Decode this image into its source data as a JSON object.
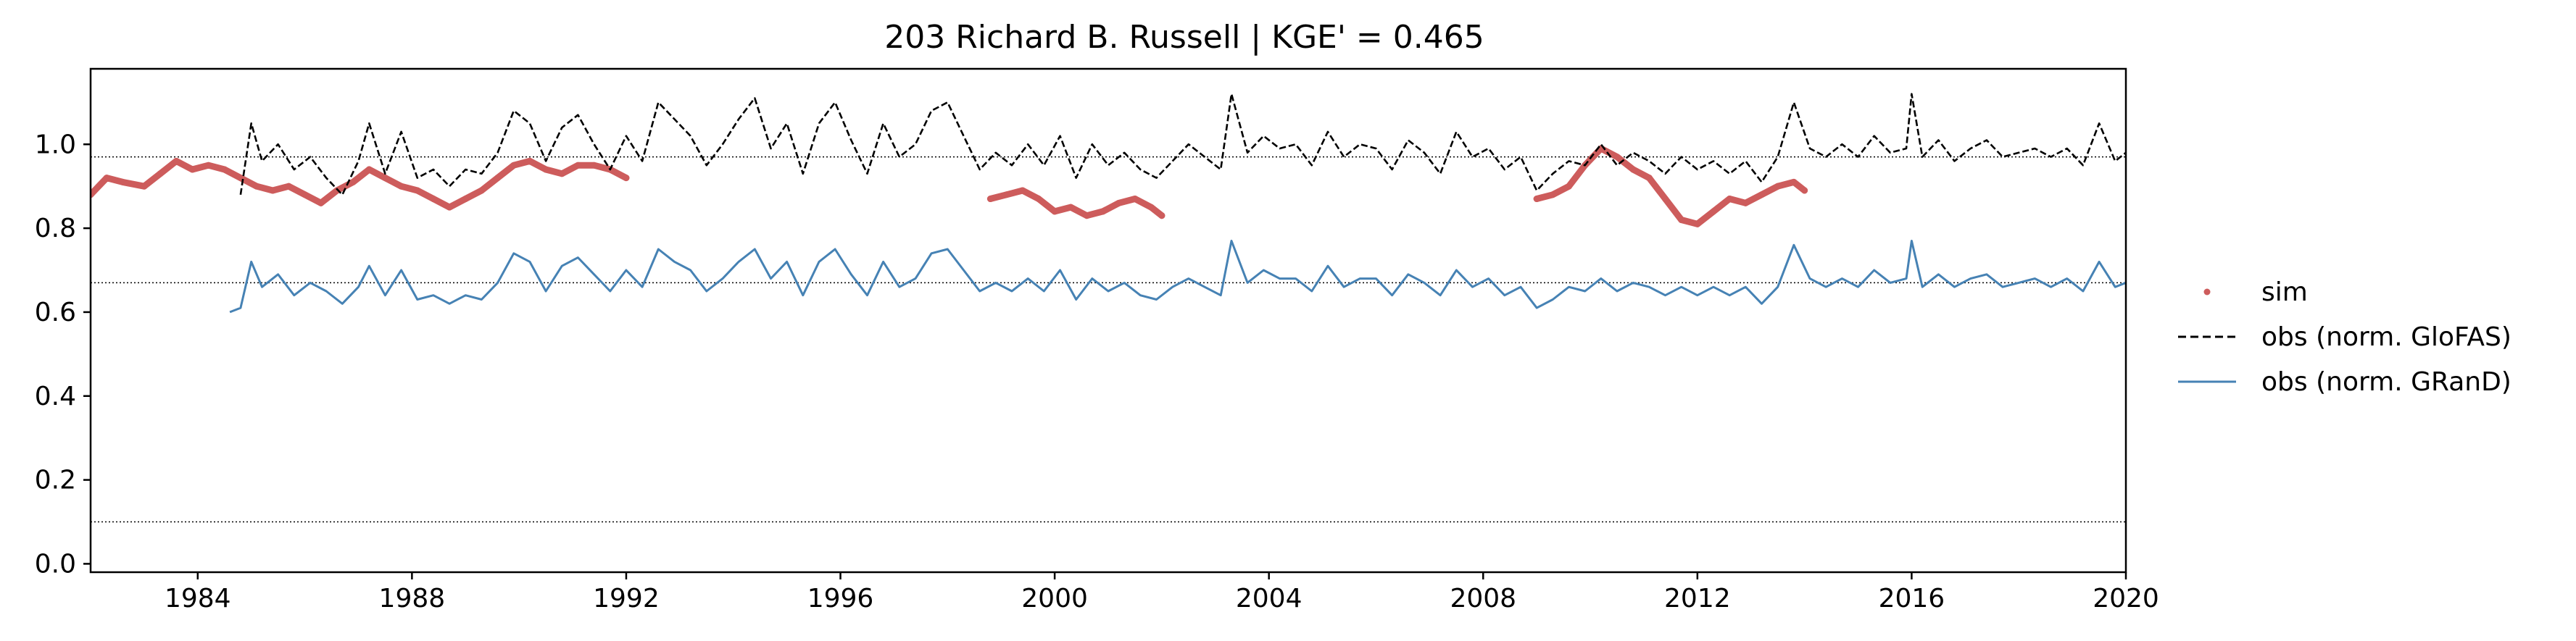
{
  "chart_data": {
    "type": "line",
    "title": "203  Richard B. Russell | KGE' = 0.465",
    "xlabel": "",
    "ylabel": "",
    "xlim": [
      1982.0,
      2020.0
    ],
    "ylim": [
      -0.02,
      1.18
    ],
    "x_ticks": [
      1984,
      1988,
      1992,
      1996,
      2000,
      2004,
      2008,
      2012,
      2016,
      2020
    ],
    "x_tick_labels": [
      "1984",
      "1988",
      "1992",
      "1996",
      "2000",
      "2004",
      "2008",
      "2012",
      "2016",
      "2020"
    ],
    "y_ticks": [
      0.0,
      0.2,
      0.4,
      0.6,
      0.8,
      1.0
    ],
    "y_tick_labels": [
      "0.0",
      "0.2",
      "0.4",
      "0.6",
      "0.8",
      "1.0"
    ],
    "hlines": [
      0.97,
      0.67,
      0.1
    ],
    "grid": false,
    "legend_position": "right",
    "legend": [
      "sim",
      "obs (norm. GloFAS)",
      "obs (norm. GRanD)"
    ],
    "colors": {
      "sim": "#cd5c5c",
      "glofas": "#000000",
      "grand": "#4682b4"
    },
    "series": [
      {
        "key": "sim",
        "name": "sim",
        "style": "dots",
        "segments": [
          {
            "x": [
              1982.0,
              1982.3,
              1982.6,
              1983.0,
              1983.3,
              1983.6,
              1983.9,
              1984.2,
              1984.5,
              1984.8,
              1985.1,
              1985.4,
              1985.7,
              1986.0,
              1986.3,
              1986.6,
              1986.9,
              1987.2,
              1987.5,
              1987.8,
              1988.1,
              1988.4,
              1988.7,
              1989.0,
              1989.3,
              1989.6,
              1989.9,
              1990.2,
              1990.5,
              1990.8,
              1991.1,
              1991.4,
              1991.7,
              1992.0
            ],
            "y": [
              0.88,
              0.92,
              0.91,
              0.9,
              0.93,
              0.96,
              0.94,
              0.95,
              0.94,
              0.92,
              0.9,
              0.89,
              0.9,
              0.88,
              0.86,
              0.89,
              0.91,
              0.94,
              0.92,
              0.9,
              0.89,
              0.87,
              0.85,
              0.87,
              0.89,
              0.92,
              0.95,
              0.96,
              0.94,
              0.93,
              0.95,
              0.95,
              0.94,
              0.92
            ]
          },
          {
            "x": [
              1998.8,
              1999.1,
              1999.4,
              1999.7,
              2000.0,
              2000.3,
              2000.6,
              2000.9,
              2001.2,
              2001.5,
              2001.8,
              2002.0
            ],
            "y": [
              0.87,
              0.88,
              0.89,
              0.87,
              0.84,
              0.85,
              0.83,
              0.84,
              0.86,
              0.87,
              0.85,
              0.83
            ]
          },
          {
            "x": [
              2009.0,
              2009.3,
              2009.6,
              2009.9,
              2010.2,
              2010.5,
              2010.8,
              2011.1,
              2011.4,
              2011.7,
              2012.0,
              2012.3,
              2012.6,
              2012.9,
              2013.2,
              2013.5,
              2013.8,
              2014.0
            ],
            "y": [
              0.87,
              0.88,
              0.9,
              0.95,
              0.99,
              0.97,
              0.94,
              0.92,
              0.87,
              0.82,
              0.81,
              0.84,
              0.87,
              0.86,
              0.88,
              0.9,
              0.91,
              0.89
            ]
          }
        ]
      },
      {
        "key": "glofas",
        "name": "obs (norm. GloFAS)",
        "style": "dashed",
        "x": [
          1984.8,
          1985.0,
          1985.2,
          1985.5,
          1985.8,
          1986.1,
          1986.4,
          1986.7,
          1987.0,
          1987.2,
          1987.5,
          1987.8,
          1988.1,
          1988.4,
          1988.7,
          1989.0,
          1989.3,
          1989.6,
          1989.9,
          1990.2,
          1990.5,
          1990.8,
          1991.1,
          1991.4,
          1991.7,
          1992.0,
          1992.3,
          1992.6,
          1992.9,
          1993.2,
          1993.5,
          1993.8,
          1994.1,
          1994.4,
          1994.7,
          1995.0,
          1995.3,
          1995.6,
          1995.9,
          1996.2,
          1996.5,
          1996.8,
          1997.1,
          1997.4,
          1997.7,
          1998.0,
          1998.3,
          1998.6,
          1998.9,
          1999.2,
          1999.5,
          1999.8,
          2000.1,
          2000.4,
          2000.7,
          2001.0,
          2001.3,
          2001.6,
          2001.9,
          2002.2,
          2002.5,
          2002.8,
          2003.1,
          2003.3,
          2003.6,
          2003.9,
          2004.2,
          2004.5,
          2004.8,
          2005.1,
          2005.4,
          2005.7,
          2006.0,
          2006.3,
          2006.6,
          2006.9,
          2007.2,
          2007.5,
          2007.8,
          2008.1,
          2008.4,
          2008.7,
          2009.0,
          2009.3,
          2009.6,
          2009.9,
          2010.2,
          2010.5,
          2010.8,
          2011.1,
          2011.4,
          2011.7,
          2012.0,
          2012.3,
          2012.6,
          2012.9,
          2013.2,
          2013.5,
          2013.8,
          2014.1,
          2014.4,
          2014.7,
          2015.0,
          2015.3,
          2015.6,
          2015.9,
          2016.0,
          2016.2,
          2016.5,
          2016.8,
          2017.1,
          2017.4,
          2017.7,
          2018.0,
          2018.3,
          2018.6,
          2018.9,
          2019.2,
          2019.5,
          2019.8,
          2020.0
        ],
        "y": [
          0.88,
          1.05,
          0.96,
          1.0,
          0.94,
          0.97,
          0.92,
          0.88,
          0.96,
          1.05,
          0.93,
          1.03,
          0.92,
          0.94,
          0.9,
          0.94,
          0.93,
          0.98,
          1.08,
          1.05,
          0.96,
          1.04,
          1.07,
          1.0,
          0.94,
          1.02,
          0.96,
          1.1,
          1.06,
          1.02,
          0.95,
          1.0,
          1.06,
          1.11,
          0.99,
          1.05,
          0.93,
          1.05,
          1.1,
          1.01,
          0.93,
          1.05,
          0.97,
          1.0,
          1.08,
          1.1,
          1.02,
          0.94,
          0.98,
          0.95,
          1.0,
          0.95,
          1.02,
          0.92,
          1.0,
          0.95,
          0.98,
          0.94,
          0.92,
          0.96,
          1.0,
          0.97,
          0.94,
          1.12,
          0.98,
          1.02,
          0.99,
          1.0,
          0.95,
          1.03,
          0.97,
          1.0,
          0.99,
          0.94,
          1.01,
          0.98,
          0.93,
          1.03,
          0.97,
          0.99,
          0.94,
          0.97,
          0.89,
          0.93,
          0.96,
          0.95,
          1.0,
          0.95,
          0.98,
          0.96,
          0.93,
          0.97,
          0.94,
          0.96,
          0.93,
          0.96,
          0.91,
          0.97,
          1.1,
          0.99,
          0.97,
          1.0,
          0.97,
          1.02,
          0.98,
          0.99,
          1.12,
          0.97,
          1.01,
          0.96,
          0.99,
          1.01,
          0.97,
          0.98,
          0.99,
          0.97,
          0.99,
          0.95,
          1.05,
          0.96,
          0.98
        ]
      },
      {
        "key": "grand",
        "name": "obs (norm. GRanD)",
        "style": "solid",
        "x": [
          1984.6,
          1984.8,
          1985.0,
          1985.2,
          1985.5,
          1985.8,
          1986.1,
          1986.4,
          1986.7,
          1987.0,
          1987.2,
          1987.5,
          1987.8,
          1988.1,
          1988.4,
          1988.7,
          1989.0,
          1989.3,
          1989.6,
          1989.9,
          1990.2,
          1990.5,
          1990.8,
          1991.1,
          1991.4,
          1991.7,
          1992.0,
          1992.3,
          1992.6,
          1992.9,
          1993.2,
          1993.5,
          1993.8,
          1994.1,
          1994.4,
          1994.7,
          1995.0,
          1995.3,
          1995.6,
          1995.9,
          1996.2,
          1996.5,
          1996.8,
          1997.1,
          1997.4,
          1997.7,
          1998.0,
          1998.3,
          1998.6,
          1998.9,
          1999.2,
          1999.5,
          1999.8,
          2000.1,
          2000.4,
          2000.7,
          2001.0,
          2001.3,
          2001.6,
          2001.9,
          2002.2,
          2002.5,
          2002.8,
          2003.1,
          2003.3,
          2003.6,
          2003.9,
          2004.2,
          2004.5,
          2004.8,
          2005.1,
          2005.4,
          2005.7,
          2006.0,
          2006.3,
          2006.6,
          2006.9,
          2007.2,
          2007.5,
          2007.8,
          2008.1,
          2008.4,
          2008.7,
          2009.0,
          2009.3,
          2009.6,
          2009.9,
          2010.2,
          2010.5,
          2010.8,
          2011.1,
          2011.4,
          2011.7,
          2012.0,
          2012.3,
          2012.6,
          2012.9,
          2013.2,
          2013.5,
          2013.8,
          2014.1,
          2014.4,
          2014.7,
          2015.0,
          2015.3,
          2015.6,
          2015.9,
          2016.0,
          2016.2,
          2016.5,
          2016.8,
          2017.1,
          2017.4,
          2017.7,
          2018.0,
          2018.3,
          2018.6,
          2018.9,
          2019.2,
          2019.5,
          2019.8,
          2020.0
        ],
        "y": [
          0.6,
          0.61,
          0.72,
          0.66,
          0.69,
          0.64,
          0.67,
          0.65,
          0.62,
          0.66,
          0.71,
          0.64,
          0.7,
          0.63,
          0.64,
          0.62,
          0.64,
          0.63,
          0.67,
          0.74,
          0.72,
          0.65,
          0.71,
          0.73,
          0.69,
          0.65,
          0.7,
          0.66,
          0.75,
          0.72,
          0.7,
          0.65,
          0.68,
          0.72,
          0.75,
          0.68,
          0.72,
          0.64,
          0.72,
          0.75,
          0.69,
          0.64,
          0.72,
          0.66,
          0.68,
          0.74,
          0.75,
          0.7,
          0.65,
          0.67,
          0.65,
          0.68,
          0.65,
          0.7,
          0.63,
          0.68,
          0.65,
          0.67,
          0.64,
          0.63,
          0.66,
          0.68,
          0.66,
          0.64,
          0.77,
          0.67,
          0.7,
          0.68,
          0.68,
          0.65,
          0.71,
          0.66,
          0.68,
          0.68,
          0.64,
          0.69,
          0.67,
          0.64,
          0.7,
          0.66,
          0.68,
          0.64,
          0.66,
          0.61,
          0.63,
          0.66,
          0.65,
          0.68,
          0.65,
          0.67,
          0.66,
          0.64,
          0.66,
          0.64,
          0.66,
          0.64,
          0.66,
          0.62,
          0.66,
          0.76,
          0.68,
          0.66,
          0.68,
          0.66,
          0.7,
          0.67,
          0.68,
          0.77,
          0.66,
          0.69,
          0.66,
          0.68,
          0.69,
          0.66,
          0.67,
          0.68,
          0.66,
          0.68,
          0.65,
          0.72,
          0.66,
          0.67
        ]
      }
    ]
  }
}
